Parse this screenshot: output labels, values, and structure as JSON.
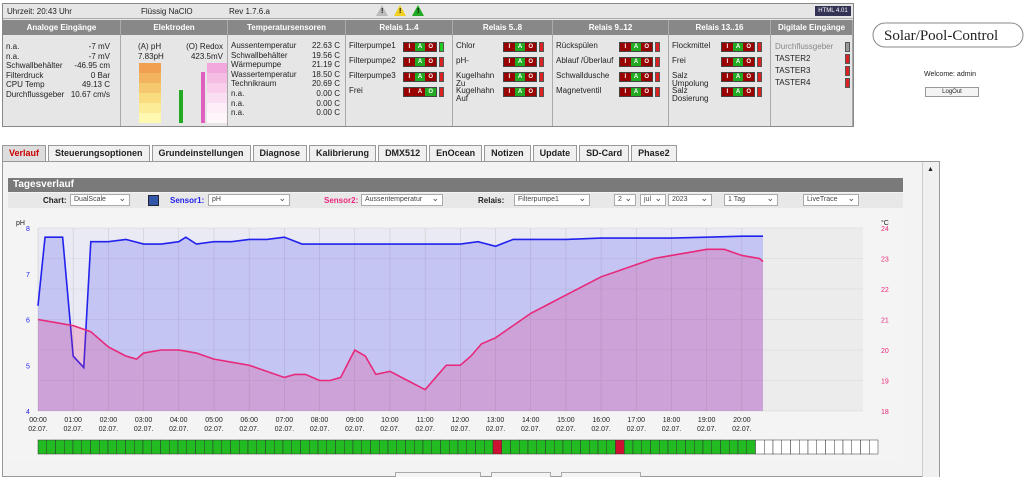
{
  "status": {
    "time": "Uhrzeit: 20:43 Uhr",
    "chem": "Flüssig NaClO",
    "rev": "Rev 1.7.6.a",
    "badge": "HTML 4.01"
  },
  "panels": {
    "analog": {
      "title": "Analoge Eingänge",
      "rows": [
        [
          "n.a.",
          "-7 mV"
        ],
        [
          "n.a.",
          "-7 mV"
        ],
        [
          "Schwallbehälter",
          "-46.95 cm"
        ],
        [
          "Filterdruck",
          "0 Bar"
        ],
        [
          "CPU Temp",
          "49.13 C"
        ],
        [
          "Durchflussgeber",
          "10.67 cm/s"
        ]
      ]
    },
    "electrodes": {
      "title": "Elektroden",
      "ph_label": "(A) pH",
      "redox_label": "(O) Redox",
      "ph_value": "7.83pH",
      "redox_value": "423.5mV",
      "ph_level": 0.55,
      "redox_level": 0.85
    },
    "sensors": {
      "title": "Temperatursensoren",
      "rows": [
        [
          "Aussentemperatur",
          "22.63 C"
        ],
        [
          "Schwallbehälter",
          "19.56 C"
        ],
        [
          "Wärmepumpe",
          "21.19 C"
        ],
        [
          "Wassertemperatur",
          "18.50 C"
        ],
        [
          "Technikraum",
          "20.69 C"
        ],
        [
          "n.a.",
          "0.00 C"
        ],
        [
          "n.a.",
          "0.00 C"
        ],
        [
          "n.a.",
          "0.00 C"
        ]
      ]
    },
    "relais1": {
      "title": "Relais 1..4",
      "items": [
        "Filterpumpe1",
        "Filterpumpe2",
        "Filterpumpe3",
        "Frei"
      ]
    },
    "relais5": {
      "title": "Relais 5..8",
      "items": [
        "Chlor",
        "pH-",
        "Kugelhahn Zu",
        "Kugelhahn Auf"
      ]
    },
    "relais9": {
      "title": "Relais 9..12",
      "items": [
        "Rückspülen",
        "Ablauf /Überlauf",
        "Schwalldusche",
        "Magnetventil"
      ]
    },
    "relais13": {
      "title": "Relais 13..16",
      "items": [
        "Flockmittel",
        "Frei",
        "Salz Umpolung",
        "Salz Dosierung"
      ]
    },
    "digital": {
      "title": "Digitale Eingänge",
      "items": [
        "Durchflussgeber",
        "TASTER2",
        "TASTER3",
        "TASTER4"
      ]
    }
  },
  "iao": {
    "i": "I",
    "a": "A",
    "o": "O"
  },
  "logo_text": "Solar/Pool-Control",
  "welcome": "Welcome:  admin",
  "logout": "LogOut",
  "tabs": [
    "Verlauf",
    "Steuerungsoptionen",
    "Grundeinstellungen",
    "Diagnose",
    "Kalibrierung",
    "DMX512",
    "EnOcean",
    "Notizen",
    "Update",
    "SD-Card",
    "Phase2"
  ],
  "section_title": "Tagesverlauf",
  "controls": {
    "chart_label": "Chart:",
    "chart_value": "DualScale",
    "sensor1_label": "Sensor1:",
    "sensor1_value": "pH",
    "sensor2_label": "Sensor2:",
    "sensor2_value": "Aussentemperatur",
    "relais_label": "Relais:",
    "relais_value": "Filterpumpe1",
    "day": "2",
    "month": "jul",
    "year": "2023",
    "range": "1 Tag",
    "trace": "LiveTrace"
  },
  "colors": {
    "ph": "#2222ee",
    "temp": "#e8287a",
    "on": "#22bb22",
    "off": "#cc1133"
  },
  "chart_data": {
    "type": "line",
    "ylabel_left": "pH",
    "ylabel_right": "°C",
    "ylim_left": [
      4,
      8
    ],
    "ylim_right": [
      18,
      24
    ],
    "yticks_left": [
      4,
      5,
      6,
      7,
      8
    ],
    "yticks_right": [
      18,
      19,
      20,
      21,
      22,
      23,
      24
    ],
    "x_hours": [
      "00:00",
      "01:00",
      "02:00",
      "03:00",
      "04:00",
      "05:00",
      "06:00",
      "07:00",
      "08:00",
      "09:00",
      "10:00",
      "11:00",
      "12:00",
      "13:00",
      "14:00",
      "15:00",
      "16:00",
      "17:00",
      "18:00",
      "19:00",
      "20:00"
    ],
    "x_date": "02.07.",
    "series": [
      {
        "name": "pH",
        "axis": "left",
        "x": [
          0,
          0.2,
          0.7,
          1.0,
          1.3,
          1.5,
          2.0,
          2.5,
          3.0,
          3.5,
          4.0,
          4.2,
          4.5,
          5.0,
          5.5,
          6.0,
          6.5,
          7.0,
          7.5,
          8.0,
          9.0,
          10.0,
          11.0,
          12.0,
          12.5,
          13.0,
          13.5,
          14.0,
          15.0,
          16.0,
          17.0,
          18.0,
          19.0,
          20.0,
          20.6
        ],
        "y": [
          6.3,
          7.8,
          7.8,
          5.2,
          4.95,
          7.7,
          7.7,
          7.75,
          7.65,
          7.65,
          7.7,
          7.8,
          7.65,
          7.7,
          7.7,
          7.75,
          7.75,
          7.8,
          7.65,
          7.65,
          7.65,
          7.65,
          7.65,
          7.65,
          7.7,
          7.6,
          7.75,
          7.75,
          7.75,
          7.78,
          7.78,
          7.78,
          7.8,
          7.82,
          7.82
        ]
      },
      {
        "name": "Aussentemperatur",
        "axis": "right",
        "x": [
          0,
          0.5,
          1.0,
          1.5,
          2.0,
          2.5,
          2.8,
          3.0,
          3.5,
          4.0,
          4.5,
          5.0,
          5.5,
          6.0,
          6.5,
          7.0,
          7.3,
          7.6,
          8.0,
          8.3,
          8.6,
          9.0,
          9.3,
          9.6,
          10.0,
          10.5,
          11.0,
          11.3,
          11.6,
          12.0,
          12.3,
          12.6,
          13.0,
          13.5,
          14.0,
          14.5,
          15.0,
          15.5,
          16.0,
          16.5,
          17.0,
          17.5,
          18.0,
          18.5,
          19.0,
          19.5,
          20.0,
          20.5,
          20.6
        ],
        "y": [
          21.0,
          20.9,
          20.8,
          20.6,
          20.1,
          19.8,
          19.7,
          19.9,
          20.0,
          20.0,
          19.9,
          19.7,
          19.6,
          19.5,
          19.3,
          19.1,
          19.2,
          19.2,
          19.0,
          19.0,
          19.1,
          20.0,
          19.8,
          19.2,
          19.3,
          19.0,
          18.7,
          19.1,
          19.5,
          19.5,
          19.8,
          20.2,
          20.4,
          20.8,
          21.2,
          21.5,
          21.8,
          22.1,
          22.4,
          22.6,
          22.8,
          23.0,
          23.1,
          23.2,
          23.3,
          23.3,
          23.1,
          23.0,
          22.9
        ]
      }
    ],
    "relay_bar": {
      "hours": 24,
      "slots_per_hour": 4,
      "active_until": 82,
      "off_slots": [
        52,
        66
      ]
    }
  }
}
